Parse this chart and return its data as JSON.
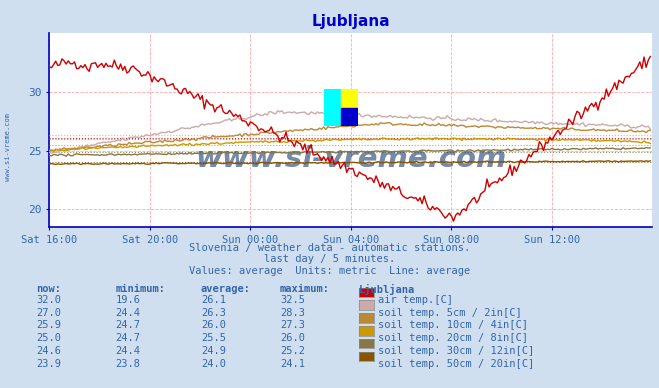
{
  "title": "Ljubljana",
  "title_color": "#0000cc",
  "bg_color": "#d0dff0",
  "plot_bg_color": "#ffffff",
  "grid_color": "#ffaaaa",
  "axis_color": "#0000bb",
  "text_color": "#3366aa",
  "xlabel_ticks": [
    "Sat 16:00",
    "Sat 20:00",
    "Sun 00:00",
    "Sun 04:00",
    "Sun 08:00",
    "Sun 12:00"
  ],
  "ylim": [
    18.5,
    35.0
  ],
  "yticks": [
    20,
    25,
    30
  ],
  "xlim": [
    0,
    288
  ],
  "xtick_positions": [
    0,
    48,
    96,
    144,
    192,
    240
  ],
  "subtitle1": "Slovenia / weather data - automatic stations.",
  "subtitle2": "last day / 5 minutes.",
  "subtitle3": "Values: average  Units: metric  Line: average",
  "legend_header_cols": [
    "now:",
    "minimum:",
    "average:",
    "maximum:",
    "Ljubljana"
  ],
  "legend_rows": [
    [
      "32.0",
      "19.6",
      "26.1",
      "32.5",
      "#cc0000",
      "air temp.[C]"
    ],
    [
      "27.0",
      "24.4",
      "26.3",
      "28.3",
      "#ccaaaa",
      "soil temp. 5cm / 2in[C]"
    ],
    [
      "25.9",
      "24.7",
      "26.0",
      "27.3",
      "#bb8833",
      "soil temp. 10cm / 4in[C]"
    ],
    [
      "25.0",
      "24.7",
      "25.5",
      "26.0",
      "#cc9900",
      "soil temp. 20cm / 8in[C]"
    ],
    [
      "24.6",
      "24.4",
      "24.9",
      "25.2",
      "#887744",
      "soil temp. 30cm / 12in[C]"
    ],
    [
      "23.9",
      "23.8",
      "24.0",
      "24.1",
      "#885500",
      "soil temp. 50cm / 20in[C]"
    ]
  ],
  "watermark": "www.si-vreme.com",
  "watermark_color": "#1a3a6e",
  "series_colors": [
    "#cc0000",
    "#ccaaaa",
    "#bb8833",
    "#cc9900",
    "#887744",
    "#885500"
  ],
  "avg_values": [
    26.1,
    26.3,
    26.0,
    25.5,
    24.9,
    24.0
  ],
  "rotated_label": "www.si-vreme.com"
}
